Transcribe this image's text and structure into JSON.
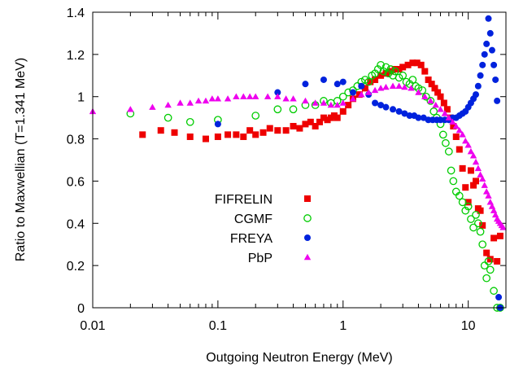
{
  "chart_data": {
    "type": "scatter",
    "title": "",
    "xlabel": "Outgoing Neutron Energy (MeV)",
    "ylabel": "Ratio to Maxwellian (T=1.341 MeV)",
    "xscale": "log",
    "xlim": [
      0.01,
      20
    ],
    "ylim": [
      0,
      1.4
    ],
    "xticks": [
      {
        "value": 0.01,
        "label": "0.01"
      },
      {
        "value": 0.1,
        "label": "0.1"
      },
      {
        "value": 1,
        "label": "1"
      },
      {
        "value": 10,
        "label": "10"
      }
    ],
    "yticks": [
      {
        "value": 0,
        "label": "0"
      },
      {
        "value": 0.2,
        "label": "0.2"
      },
      {
        "value": 0.4,
        "label": "0.4"
      },
      {
        "value": 0.6,
        "label": "0.6"
      },
      {
        "value": 0.8,
        "label": "0.8"
      },
      {
        "value": 1.0,
        "label": "1"
      },
      {
        "value": 1.2,
        "label": "1.2"
      },
      {
        "value": 1.4,
        "label": "1.4"
      }
    ],
    "legend_position": "center-left",
    "series": [
      {
        "name": "FIFRELIN",
        "color": "#ee0000",
        "marker": "square-filled",
        "x": [
          0.025,
          0.035,
          0.045,
          0.06,
          0.08,
          0.1,
          0.12,
          0.14,
          0.16,
          0.18,
          0.2,
          0.23,
          0.26,
          0.3,
          0.35,
          0.4,
          0.45,
          0.5,
          0.55,
          0.6,
          0.65,
          0.7,
          0.75,
          0.8,
          0.85,
          0.9,
          1.0,
          1.1,
          1.2,
          1.35,
          1.5,
          1.65,
          1.8,
          2.0,
          2.2,
          2.4,
          2.6,
          2.8,
          3.0,
          3.3,
          3.6,
          3.9,
          4.2,
          4.5,
          4.8,
          5.1,
          5.4,
          5.7,
          6.0,
          6.4,
          6.8,
          7.2,
          7.6,
          8.0,
          8.5,
          9.0,
          9.5,
          10.0,
          10.5,
          11.0,
          11.5,
          12.0,
          12.5,
          13.0,
          14.0,
          15.0,
          16.0,
          17.0,
          18.0
        ],
        "y": [
          0.82,
          0.84,
          0.83,
          0.81,
          0.8,
          0.81,
          0.82,
          0.82,
          0.81,
          0.84,
          0.82,
          0.83,
          0.85,
          0.84,
          0.84,
          0.86,
          0.85,
          0.87,
          0.88,
          0.86,
          0.88,
          0.9,
          0.89,
          0.9,
          0.91,
          0.9,
          0.93,
          0.96,
          0.99,
          1.01,
          1.04,
          1.07,
          1.08,
          1.1,
          1.11,
          1.12,
          1.13,
          1.13,
          1.14,
          1.15,
          1.16,
          1.16,
          1.15,
          1.12,
          1.08,
          1.06,
          1.04,
          1.02,
          1.0,
          0.97,
          0.94,
          0.9,
          0.86,
          0.81,
          0.75,
          0.66,
          0.57,
          0.5,
          0.65,
          0.58,
          0.6,
          0.47,
          0.46,
          0.39,
          0.26,
          0.23,
          0.33,
          0.22,
          0.34
        ]
      },
      {
        "name": "CGMF",
        "color": "#00cc00",
        "marker": "circle-open",
        "x": [
          0.02,
          0.04,
          0.06,
          0.1,
          0.2,
          0.3,
          0.4,
          0.5,
          0.6,
          0.7,
          0.8,
          0.9,
          1.0,
          1.1,
          1.2,
          1.3,
          1.4,
          1.5,
          1.6,
          1.7,
          1.8,
          1.9,
          2.0,
          2.1,
          2.2,
          2.3,
          2.4,
          2.5,
          2.6,
          2.8,
          3.0,
          3.2,
          3.4,
          3.6,
          3.8,
          4.0,
          4.3,
          4.6,
          5.0,
          5.3,
          5.6,
          6.0,
          6.3,
          6.6,
          7.0,
          7.3,
          7.6,
          8.0,
          8.5,
          9.0,
          9.5,
          10.0,
          10.5,
          11.0,
          11.5,
          12.0,
          12.5,
          13.0,
          13.5,
          14.0,
          14.5,
          15.0,
          16.0,
          17.0,
          18.0
        ],
        "y": [
          0.92,
          0.9,
          0.88,
          0.89,
          0.91,
          0.94,
          0.94,
          0.96,
          0.96,
          0.98,
          0.97,
          0.98,
          1.0,
          1.02,
          1.03,
          1.05,
          1.07,
          1.08,
          1.07,
          1.1,
          1.11,
          1.13,
          1.15,
          1.12,
          1.14,
          1.11,
          1.13,
          1.1,
          1.12,
          1.09,
          1.1,
          1.07,
          1.06,
          1.08,
          1.05,
          1.04,
          1.03,
          1.0,
          0.98,
          0.93,
          0.9,
          0.87,
          0.82,
          0.78,
          0.74,
          0.65,
          0.6,
          0.55,
          0.53,
          0.5,
          0.46,
          0.48,
          0.42,
          0.38,
          0.44,
          0.4,
          0.36,
          0.3,
          0.2,
          0.14,
          0.22,
          0.18,
          0.08,
          0.0,
          0.0
        ]
      },
      {
        "name": "FREYA",
        "color": "#0022dd",
        "marker": "circle-filled",
        "x": [
          0.1,
          0.3,
          0.5,
          0.7,
          0.9,
          1.0,
          1.2,
          1.4,
          1.6,
          1.8,
          2.0,
          2.2,
          2.5,
          2.8,
          3.1,
          3.4,
          3.7,
          4.0,
          4.4,
          4.8,
          5.2,
          5.6,
          6.0,
          6.5,
          7.0,
          7.5,
          8.0,
          8.5,
          9.0,
          9.5,
          10.0,
          10.5,
          11.0,
          11.5,
          12.0,
          12.5,
          13.0,
          13.5,
          14.0,
          14.5,
          15.0,
          15.5,
          16.0,
          16.5,
          17.0,
          17.5,
          18.0
        ],
        "y": [
          0.87,
          1.02,
          1.06,
          1.08,
          1.06,
          1.07,
          1.02,
          1.05,
          1.01,
          0.97,
          0.96,
          0.95,
          0.94,
          0.93,
          0.92,
          0.91,
          0.91,
          0.9,
          0.9,
          0.89,
          0.89,
          0.89,
          0.89,
          0.89,
          0.89,
          0.9,
          0.9,
          0.91,
          0.92,
          0.93,
          0.95,
          0.97,
          0.99,
          1.01,
          1.05,
          1.1,
          1.15,
          1.2,
          1.25,
          1.37,
          1.3,
          1.22,
          1.15,
          1.08,
          0.98,
          0.05,
          0.0
        ]
      },
      {
        "name": "PbP",
        "color": "#ee00ee",
        "marker": "triangle-filled",
        "x": [
          0.01,
          0.02,
          0.03,
          0.04,
          0.05,
          0.06,
          0.07,
          0.08,
          0.09,
          0.1,
          0.12,
          0.14,
          0.16,
          0.18,
          0.2,
          0.25,
          0.3,
          0.35,
          0.4,
          0.5,
          0.6,
          0.7,
          0.8,
          0.9,
          1.0,
          1.2,
          1.4,
          1.6,
          1.8,
          2.0,
          2.2,
          2.5,
          2.8,
          3.1,
          3.5,
          4.0,
          4.5,
          5.0,
          5.5,
          6.0,
          6.5,
          7.0,
          7.5,
          8.0,
          8.5,
          9.0,
          9.5,
          10.0,
          10.5,
          11.0,
          11.5,
          12.0,
          12.5,
          13.0,
          13.5,
          14.0,
          14.5,
          15.0,
          15.5,
          16.0,
          16.5,
          17.0,
          17.5,
          18.0,
          18.5,
          19.0
        ],
        "y": [
          0.93,
          0.94,
          0.95,
          0.96,
          0.97,
          0.97,
          0.98,
          0.98,
          0.99,
          0.99,
          0.99,
          1.0,
          1.0,
          1.0,
          1.0,
          1.0,
          1.0,
          0.99,
          0.99,
          0.98,
          0.97,
          0.97,
          0.96,
          0.96,
          0.97,
          0.99,
          1.01,
          1.02,
          1.03,
          1.04,
          1.045,
          1.05,
          1.05,
          1.045,
          1.04,
          1.02,
          1.0,
          0.98,
          0.96,
          0.94,
          0.92,
          0.9,
          0.88,
          0.86,
          0.84,
          0.82,
          0.79,
          0.77,
          0.74,
          0.72,
          0.69,
          0.66,
          0.63,
          0.61,
          0.58,
          0.55,
          0.53,
          0.5,
          0.48,
          0.46,
          0.44,
          0.42,
          0.41,
          0.4,
          0.39,
          0.38
        ]
      }
    ]
  }
}
